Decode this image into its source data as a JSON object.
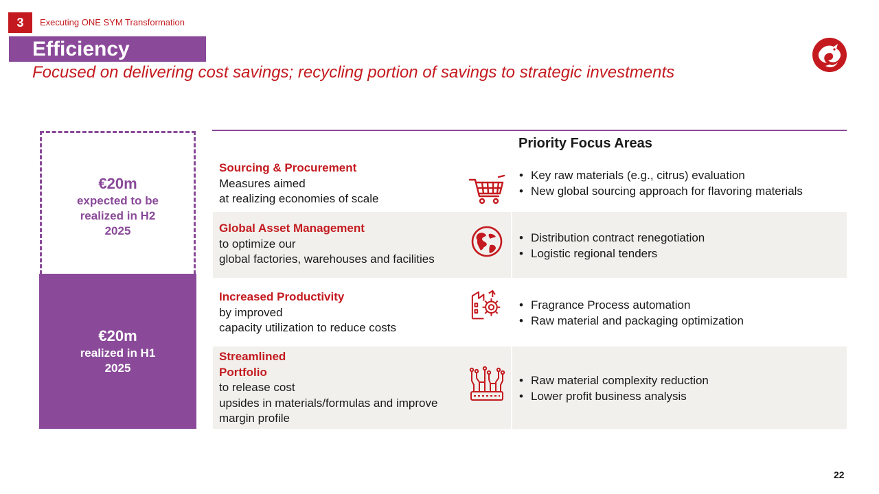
{
  "header": {
    "section_number": "3",
    "section_label": "Executing ONE SYM Transformation",
    "title": "Efficiency",
    "subtitle": "Focused on delivering cost savings; recycling portion of savings to strategic investments"
  },
  "savings": {
    "h2": {
      "amount": "€20m",
      "desc_lines": [
        "expected to be",
        "realized in H2",
        "2025"
      ]
    },
    "h1": {
      "amount": "€20m",
      "desc_lines": [
        "realized in H1",
        "2025"
      ]
    }
  },
  "table": {
    "header": "Priority Focus Areas",
    "rows": [
      {
        "title_lines": [
          "Sourcing & Procurement"
        ],
        "desc_lines": [
          "Measures aimed",
          "at realizing economies of scale"
        ],
        "icon": "shopping-cart-icon",
        "bullets": [
          "Key raw materials (e.g., citrus) evaluation",
          "New global sourcing approach for flavoring materials"
        ]
      },
      {
        "title_lines": [
          "Global Asset Management"
        ],
        "desc_lines": [
          "to optimize our",
          "global factories, warehouses and facilities"
        ],
        "icon": "globe-icon",
        "bullets": [
          "Distribution contract renegotiation",
          "Logistic regional tenders"
        ]
      },
      {
        "title_lines": [
          "Increased Productivity"
        ],
        "desc_lines": [
          "by improved",
          "capacity utilization to reduce costs"
        ],
        "icon": "factory-gear-icon",
        "bullets": [
          "Fragrance Process automation",
          "Raw material and packaging optimization"
        ]
      },
      {
        "title_lines": [
          "Streamlined",
          "Portfolio"
        ],
        "desc_lines": [
          "to release cost",
          "upsides in materials/formulas and improve",
          "margin profile"
        ],
        "icon": "circuit-chip-icon",
        "bullets": [
          "Raw material complexity reduction",
          "Lower profit business analysis"
        ]
      }
    ]
  },
  "page_number": "22",
  "colors": {
    "accent_red": "#c41a1f",
    "purple": "#8a4a99",
    "row_shade": "#f1f0ec"
  }
}
